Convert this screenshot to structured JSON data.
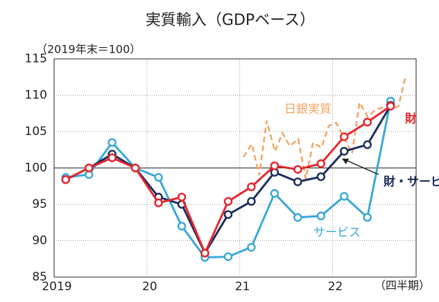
{
  "chart_data": {
    "type": "line",
    "title": "実質輸入（GDPベース）",
    "unit_label": "（2019年末＝100）",
    "x_axis_label": "（四半期）",
    "xlim": [
      2019.0,
      2022.9
    ],
    "xticks": [
      {
        "value": 2019.0,
        "label": "2019"
      },
      {
        "value": 2020.0,
        "label": "20"
      },
      {
        "value": 2021.0,
        "label": "21"
      },
      {
        "value": 2022.0,
        "label": "22"
      }
    ],
    "ylim": [
      85,
      115
    ],
    "yticks": [
      85,
      90,
      95,
      100,
      105,
      110,
      115
    ],
    "grid": true,
    "series": [
      {
        "name": "日銀実質",
        "color": "#f2a463",
        "dashed": true,
        "x": [
          2021.04,
          2021.13,
          2021.21,
          2021.29,
          2021.38,
          2021.46,
          2021.54,
          2021.63,
          2021.71,
          2021.79,
          2021.88,
          2021.96,
          2022.04,
          2022.13,
          2022.21,
          2022.29,
          2022.38,
          2022.46,
          2022.54,
          2022.63,
          2022.71,
          2022.79
        ],
        "values": [
          101.5,
          103.3,
          99.0,
          106.5,
          102.3,
          104.8,
          103.0,
          104.0,
          98.5,
          103.5,
          102.8,
          105.8,
          106.2,
          104.0,
          102.0,
          109.0,
          107.0,
          108.0,
          108.3,
          108.0,
          108.5,
          112.8
        ]
      },
      {
        "name": "サービス",
        "color": "#3aa8d8",
        "markers": true,
        "x": [
          2019.125,
          2019.375,
          2019.625,
          2019.875,
          2020.125,
          2020.375,
          2020.625,
          2020.875,
          2021.125,
          2021.375,
          2021.625,
          2021.875,
          2022.125,
          2022.375,
          2022.625
        ],
        "values": [
          98.7,
          99.1,
          103.5,
          100.0,
          98.7,
          92.0,
          87.7,
          87.8,
          89.1,
          96.5,
          93.2,
          93.4,
          96.1,
          93.2,
          109.2
        ]
      },
      {
        "name": "財・サービス",
        "color": "#1b2d5b",
        "markers": true,
        "x": [
          2019.125,
          2019.375,
          2019.625,
          2019.875,
          2020.125,
          2020.375,
          2020.625,
          2020.875,
          2021.125,
          2021.375,
          2021.625,
          2021.875,
          2022.125,
          2022.375,
          2022.625
        ],
        "values": [
          98.4,
          100.0,
          101.9,
          100.0,
          96.0,
          95.0,
          88.3,
          93.6,
          95.4,
          99.4,
          98.1,
          98.8,
          102.3,
          103.2,
          108.6
        ]
      },
      {
        "name": "財",
        "color": "#e5262e",
        "markers": true,
        "x": [
          2019.125,
          2019.375,
          2019.625,
          2019.875,
          2020.125,
          2020.375,
          2020.625,
          2020.875,
          2021.125,
          2021.375,
          2021.625,
          2021.875,
          2022.125,
          2022.375,
          2022.625
        ],
        "values": [
          98.4,
          100.0,
          101.4,
          100.0,
          95.2,
          96.0,
          88.3,
          95.4,
          97.4,
          100.3,
          99.8,
          100.6,
          104.3,
          106.3,
          108.5
        ]
      }
    ]
  }
}
